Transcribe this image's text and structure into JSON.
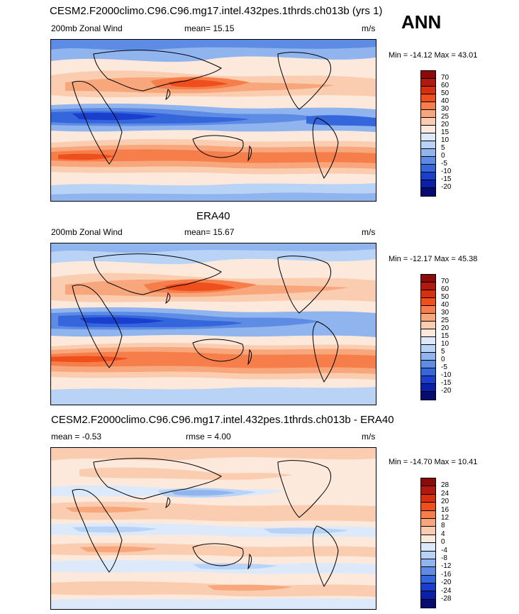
{
  "season": "ANN",
  "panels": [
    {
      "title": "CESM2.F2000climo.C96.C96.mg17.intel.432pes.1thrds.ch013b (yrs 1)",
      "left_label": "200mb Zonal Wind",
      "mid_label": "mean=  15.15",
      "units": "m/s",
      "minmax": "Min = -14.12 Max =  43.01",
      "levels": [
        "70",
        "60",
        "50",
        "40",
        "30",
        "25",
        "20",
        "15",
        "10",
        "5",
        "0",
        "-5",
        "-10",
        "-15",
        "-20"
      ],
      "colors": [
        "#8b0a0a",
        "#b0190e",
        "#d8300f",
        "#ef4f1c",
        "#f57e4a",
        "#f8a77c",
        "#fbcdb0",
        "#fde9dc",
        "#dbe9fb",
        "#b8d3f5",
        "#8fb4ee",
        "#5e8be3",
        "#3566dc",
        "#1a3fcf",
        "#0a20a8",
        "#060d6e"
      ]
    },
    {
      "title": "ERA40",
      "left_label": "200mb Zonal Wind",
      "mid_label": "mean=  15.67",
      "units": "m/s",
      "minmax": "Min = -12.17 Max =  45.38",
      "levels": [
        "70",
        "60",
        "50",
        "40",
        "30",
        "25",
        "20",
        "15",
        "10",
        "5",
        "0",
        "-5",
        "-10",
        "-15",
        "-20"
      ],
      "colors": [
        "#8b0a0a",
        "#b0190e",
        "#d8300f",
        "#ef4f1c",
        "#f57e4a",
        "#f8a77c",
        "#fbcdb0",
        "#fde9dc",
        "#dbe9fb",
        "#b8d3f5",
        "#8fb4ee",
        "#5e8be3",
        "#3566dc",
        "#1a3fcf",
        "#0a20a8",
        "#060d6e"
      ]
    },
    {
      "title": "CESM2.F2000climo.C96.C96.mg17.intel.432pes.1thrds.ch013b - ERA40",
      "left_label": "mean =  -0.53",
      "mid_label": "rmse =   4.00",
      "units": "m/s",
      "minmax": "Min = -14.70 Max =  10.41",
      "levels": [
        "28",
        "24",
        "20",
        "16",
        "12",
        "8",
        "4",
        "0",
        "-4",
        "-8",
        "-12",
        "-16",
        "-20",
        "-24",
        "-28"
      ],
      "colors": [
        "#8b0a0a",
        "#b0190e",
        "#d8300f",
        "#ef4f1c",
        "#f57e4a",
        "#f8a77c",
        "#fbcdb0",
        "#fde9dc",
        "#dbe9fb",
        "#b8d3f5",
        "#8fb4ee",
        "#5e8be3",
        "#3566dc",
        "#1a3fcf",
        "#0a20a8",
        "#060d6e"
      ]
    }
  ]
}
